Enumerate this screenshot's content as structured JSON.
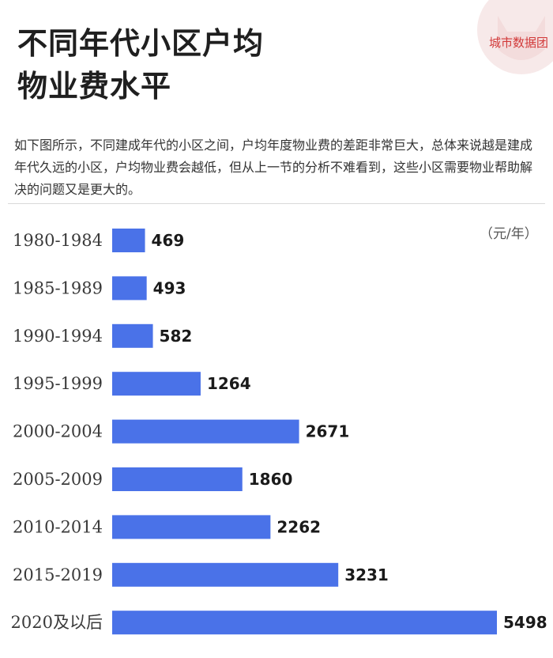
{
  "header": {
    "title_line1": "不同年代小区户均",
    "title_line2": "物业费水平",
    "brand": "城市数据团"
  },
  "description": "如下图所示，不同建成年代的小区之间，户均年度物业费的差距非常巨大，总体来说越是建成年代久远的小区，户均物业费会越低，但从上一节的分析不难看到，这些小区需要物业帮助解决的问题又是更大的。",
  "colors": {
    "bar": "#4a72e8",
    "brand": "#d23a3a"
  },
  "chart_data": {
    "type": "bar",
    "orientation": "horizontal",
    "unit": "（元/年）",
    "categories": [
      "1980-1984",
      "1985-1989",
      "1990-1994",
      "1995-1999",
      "2000-2004",
      "2005-2009",
      "2010-2014",
      "2015-2019",
      "2020及以后"
    ],
    "values": [
      469,
      493,
      582,
      1264,
      2671,
      1860,
      2262,
      3231,
      5498
    ],
    "title": "",
    "xlabel": "",
    "ylabel": "",
    "xlim": [
      0,
      5498
    ],
    "grid": false,
    "legend": "none"
  }
}
